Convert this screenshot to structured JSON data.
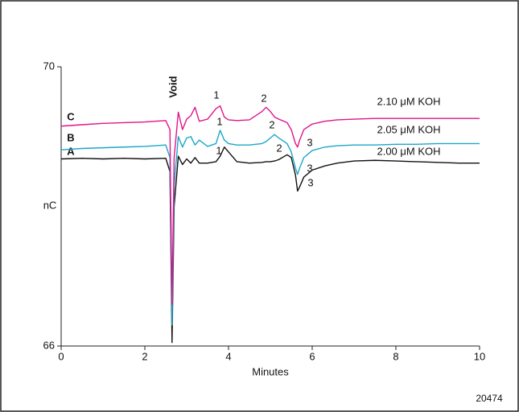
{
  "chart_data": {
    "type": "line",
    "xlabel": "Minutes",
    "ylabel": "nC",
    "note": "20474",
    "annotation": "Void",
    "xlim": [
      0,
      10
    ],
    "ylim": [
      66,
      70
    ],
    "xticks": [
      0,
      2,
      4,
      6,
      8,
      10
    ],
    "yticks": [
      66,
      70
    ],
    "x": [
      0,
      0.5,
      1,
      1.5,
      2,
      2.5,
      2.6,
      2.65,
      2.7,
      2.8,
      2.9,
      3.0,
      3.1,
      3.2,
      3.3,
      3.5,
      3.7,
      3.8,
      3.9,
      4.0,
      4.2,
      4.5,
      4.8,
      4.9,
      5.0,
      5.1,
      5.2,
      5.4,
      5.5,
      5.6,
      5.65,
      5.7,
      5.8,
      6.0,
      6.3,
      6.6,
      7,
      7.5,
      8,
      8.5,
      9,
      9.5,
      10
    ],
    "series": [
      {
        "name": "2.00 μM KOH",
        "label": "A",
        "peaks": [
          "1",
          "2",
          "3"
        ],
        "color": "#111111",
        "values": [
          68.68,
          68.69,
          68.68,
          68.69,
          68.68,
          68.69,
          68.5,
          66.05,
          68.0,
          68.72,
          68.6,
          68.68,
          68.62,
          68.7,
          68.62,
          68.62,
          68.64,
          68.72,
          68.85,
          68.78,
          68.64,
          68.62,
          68.63,
          68.64,
          68.64,
          68.65,
          68.67,
          68.74,
          68.7,
          68.45,
          68.22,
          68.28,
          68.42,
          68.52,
          68.58,
          68.62,
          68.65,
          68.66,
          68.65,
          68.64,
          68.63,
          68.62,
          68.62
        ]
      },
      {
        "name": "2.05 μM KOH",
        "label": "B",
        "peaks": [
          "1",
          "2",
          "3"
        ],
        "color": "#1aa7c9",
        "values": [
          68.81,
          68.83,
          68.84,
          68.85,
          68.86,
          68.88,
          68.7,
          66.3,
          68.3,
          69.0,
          68.85,
          68.98,
          69.0,
          68.88,
          68.95,
          68.86,
          68.9,
          69.09,
          68.95,
          68.9,
          68.88,
          68.88,
          68.9,
          68.93,
          68.98,
          69.03,
          68.98,
          68.9,
          68.78,
          68.55,
          68.46,
          68.55,
          68.7,
          68.8,
          68.85,
          68.87,
          68.88,
          68.88,
          68.89,
          68.89,
          68.9,
          68.9,
          68.9
        ]
      },
      {
        "name": "2.10 μM KOH",
        "label": "C",
        "peaks": [
          "1",
          "2",
          "3"
        ],
        "color": "#e0158a",
        "values": [
          69.15,
          69.17,
          69.19,
          69.2,
          69.21,
          69.23,
          69.1,
          66.6,
          68.7,
          69.35,
          69.1,
          69.25,
          69.3,
          69.42,
          69.22,
          69.25,
          69.4,
          69.44,
          69.28,
          69.24,
          69.23,
          69.24,
          69.36,
          69.42,
          69.36,
          69.28,
          69.25,
          69.2,
          69.1,
          68.9,
          68.85,
          68.95,
          69.1,
          69.18,
          69.22,
          69.24,
          69.25,
          69.26,
          69.26,
          69.26,
          69.26,
          69.26,
          69.26
        ]
      }
    ]
  }
}
